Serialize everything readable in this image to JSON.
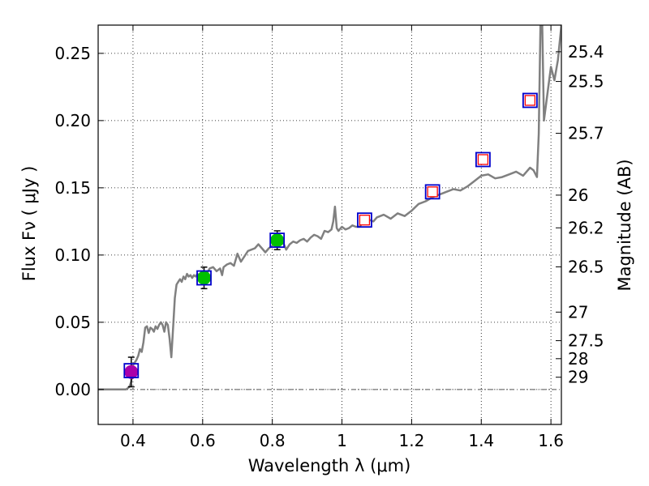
{
  "chart_data": {
    "type": "scatter",
    "xlabel": "Wavelength  λ (μm)",
    "ylabel": "Flux  Fν  ( μJy )",
    "y2label": "Magnitude (AB)",
    "xlim": [
      0.3,
      1.63
    ],
    "ylim": [
      -0.026,
      0.271
    ],
    "grid": true,
    "x_ticks": [
      0.4,
      0.6,
      0.8,
      1.0,
      1.2,
      1.4,
      1.6
    ],
    "x_tick_labels": [
      "0.4",
      "0.6",
      "0.8",
      "1",
      "1.2",
      "1.4",
      "1.6"
    ],
    "y_ticks": [
      0.0,
      0.05,
      0.1,
      0.15,
      0.2,
      0.25
    ],
    "y_tick_labels": [
      "0.00",
      "0.05",
      "0.10",
      "0.15",
      "0.20",
      "0.25"
    ],
    "mag_ticks": [
      25.4,
      25.5,
      25.7,
      26,
      26.2,
      26.5,
      27,
      27.5,
      28,
      29
    ],
    "mag_tick_labels": [
      "25.4",
      "25.5",
      "25.7",
      "26",
      "26.2",
      "26.5",
      "27",
      "27.5",
      "28",
      "29"
    ],
    "colors": {
      "spectrum": "#808080",
      "model_marker": "#0000cc",
      "obs_marker": "#ff0000",
      "detection_green": "#00c000",
      "detection_purple": "#aa00aa",
      "errorbar": "#000000",
      "zero_line": "#555555"
    },
    "model_photometry": [
      {
        "x": 0.395,
        "y": 0.014
      },
      {
        "x": 0.604,
        "y": 0.083
      },
      {
        "x": 0.814,
        "y": 0.111
      },
      {
        "x": 1.065,
        "y": 0.126
      },
      {
        "x": 1.26,
        "y": 0.147
      },
      {
        "x": 1.405,
        "y": 0.171
      },
      {
        "x": 1.54,
        "y": 0.215
      }
    ],
    "detections": [
      {
        "x": 0.395,
        "y": 0.013,
        "yerr": 0.011,
        "color": "#aa00aa"
      },
      {
        "x": 0.604,
        "y": 0.083,
        "yerr": 0.008,
        "color": "#00c000"
      },
      {
        "x": 0.814,
        "y": 0.111,
        "yerr": 0.007,
        "color": "#00c000"
      }
    ],
    "upper_limits": [
      {
        "x": 1.065,
        "y": 0.126
      },
      {
        "x": 1.26,
        "y": 0.147
      },
      {
        "x": 1.405,
        "y": 0.171
      },
      {
        "x": 1.54,
        "y": 0.215
      }
    ],
    "spectrum": {
      "x": [
        0.3,
        0.35,
        0.38,
        0.385,
        0.39,
        0.395,
        0.4,
        0.405,
        0.41,
        0.415,
        0.42,
        0.425,
        0.43,
        0.435,
        0.44,
        0.445,
        0.45,
        0.455,
        0.46,
        0.465,
        0.47,
        0.475,
        0.48,
        0.485,
        0.49,
        0.495,
        0.5,
        0.505,
        0.51,
        0.515,
        0.52,
        0.525,
        0.53,
        0.535,
        0.54,
        0.545,
        0.55,
        0.555,
        0.56,
        0.565,
        0.57,
        0.575,
        0.58,
        0.585,
        0.59,
        0.595,
        0.6,
        0.61,
        0.62,
        0.63,
        0.64,
        0.65,
        0.656,
        0.66,
        0.67,
        0.68,
        0.69,
        0.7,
        0.71,
        0.72,
        0.73,
        0.74,
        0.75,
        0.76,
        0.77,
        0.78,
        0.79,
        0.8,
        0.81,
        0.82,
        0.83,
        0.84,
        0.85,
        0.86,
        0.87,
        0.88,
        0.89,
        0.9,
        0.91,
        0.92,
        0.93,
        0.94,
        0.95,
        0.96,
        0.97,
        0.975,
        0.98,
        0.985,
        0.99,
        1.0,
        1.01,
        1.02,
        1.03,
        1.04,
        1.05,
        1.06,
        1.07,
        1.08,
        1.09,
        1.1,
        1.12,
        1.14,
        1.16,
        1.18,
        1.2,
        1.22,
        1.24,
        1.26,
        1.28,
        1.3,
        1.32,
        1.34,
        1.36,
        1.38,
        1.4,
        1.42,
        1.44,
        1.46,
        1.48,
        1.5,
        1.52,
        1.53,
        1.54,
        1.55,
        1.56,
        1.565,
        1.57,
        1.575,
        1.58,
        1.59,
        1.6,
        1.61,
        1.62,
        1.63
      ],
      "y": [
        0.0,
        0.0,
        0.0,
        0.001,
        0.002,
        0.006,
        0.018,
        0.02,
        0.022,
        0.025,
        0.03,
        0.028,
        0.035,
        0.046,
        0.047,
        0.042,
        0.046,
        0.045,
        0.043,
        0.047,
        0.045,
        0.048,
        0.05,
        0.048,
        0.043,
        0.05,
        0.048,
        0.038,
        0.024,
        0.045,
        0.068,
        0.078,
        0.08,
        0.082,
        0.08,
        0.084,
        0.082,
        0.086,
        0.084,
        0.085,
        0.083,
        0.085,
        0.084,
        0.086,
        0.085,
        0.087,
        0.088,
        0.085,
        0.09,
        0.091,
        0.088,
        0.09,
        0.085,
        0.091,
        0.093,
        0.094,
        0.092,
        0.101,
        0.095,
        0.099,
        0.103,
        0.104,
        0.105,
        0.108,
        0.105,
        0.102,
        0.105,
        0.107,
        0.11,
        0.108,
        0.11,
        0.104,
        0.108,
        0.11,
        0.109,
        0.111,
        0.112,
        0.11,
        0.113,
        0.115,
        0.114,
        0.112,
        0.118,
        0.117,
        0.119,
        0.125,
        0.136,
        0.12,
        0.118,
        0.121,
        0.119,
        0.12,
        0.122,
        0.121,
        0.121,
        0.124,
        0.125,
        0.126,
        0.125,
        0.128,
        0.13,
        0.127,
        0.131,
        0.129,
        0.133,
        0.138,
        0.14,
        0.143,
        0.145,
        0.147,
        0.149,
        0.148,
        0.151,
        0.155,
        0.159,
        0.16,
        0.157,
        0.158,
        0.16,
        0.162,
        0.159,
        0.162,
        0.165,
        0.163,
        0.158,
        0.19,
        0.271,
        0.271,
        0.2,
        0.22,
        0.24,
        0.23,
        0.245,
        0.271
      ]
    }
  }
}
